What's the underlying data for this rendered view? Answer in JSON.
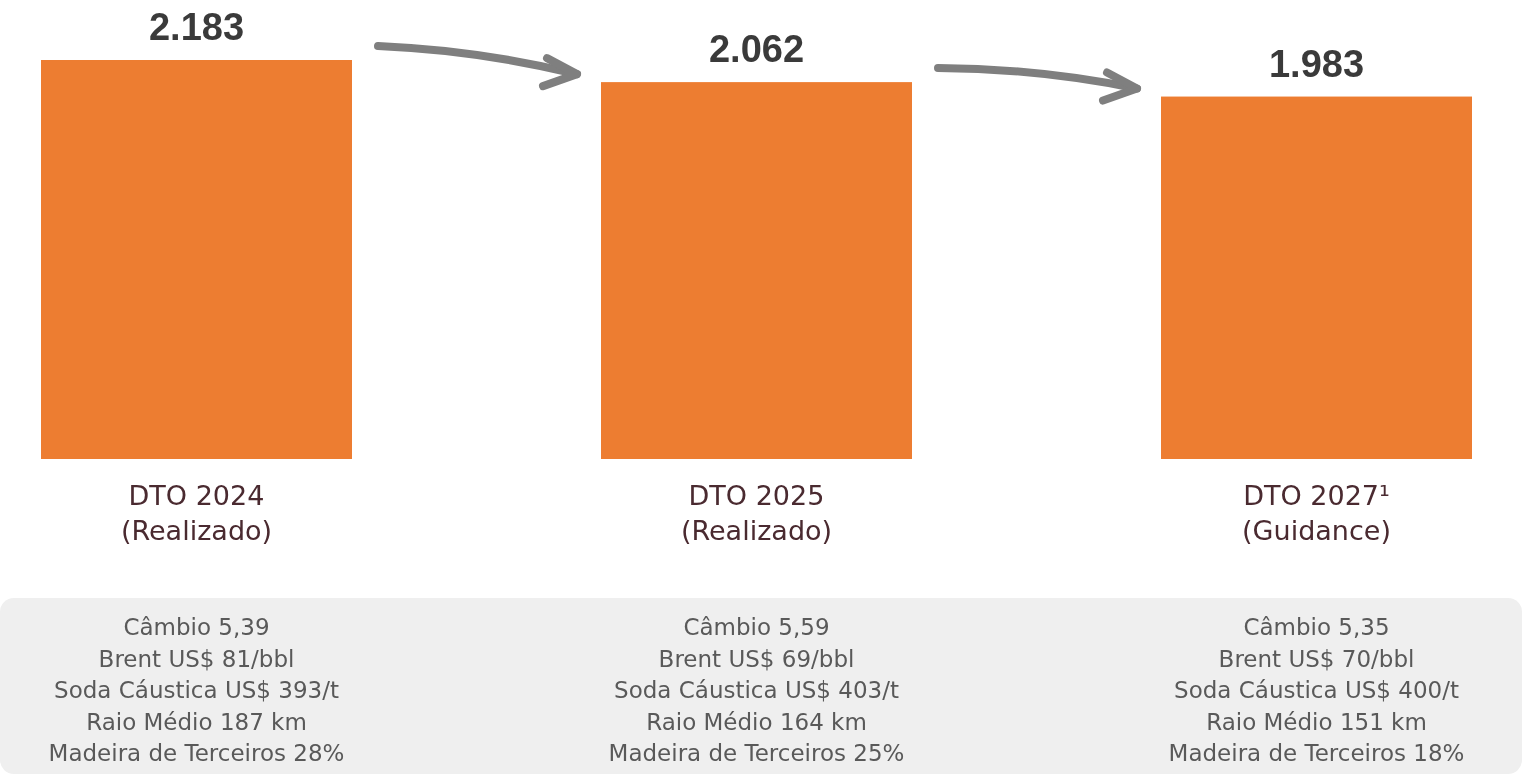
{
  "chart_data": {
    "type": "bar",
    "categories": [
      "DTO 2024\n(Realizado)",
      "DTO 2025\n(Realizado)",
      "DTO 2027¹\n(Guidance)"
    ],
    "values": [
      2183,
      2062,
      1983
    ],
    "value_labels": [
      "2.183",
      "2.062",
      "1.983"
    ],
    "color": "#ed7d31",
    "annotations": [
      "Câmbio 5,39",
      "Brent US$ 81/bbl",
      "Soda Cáustica US$ 393/t",
      "Raio Médio 187 km",
      "Madeira de Terceiros 28%",
      "Câmbio 5,59",
      "Brent US$ 69/bbl",
      "Soda Cáustica US$ 403/t",
      "Raio Médio 164 km",
      "Madeira de Terceiros 25%",
      "Câmbio 5,35",
      "Brent US$ 70/bbl",
      "Soda Cáustica US$ 400/t",
      "Raio Médio 151 km",
      "Madeira de Terceiros 18%"
    ]
  }
}
